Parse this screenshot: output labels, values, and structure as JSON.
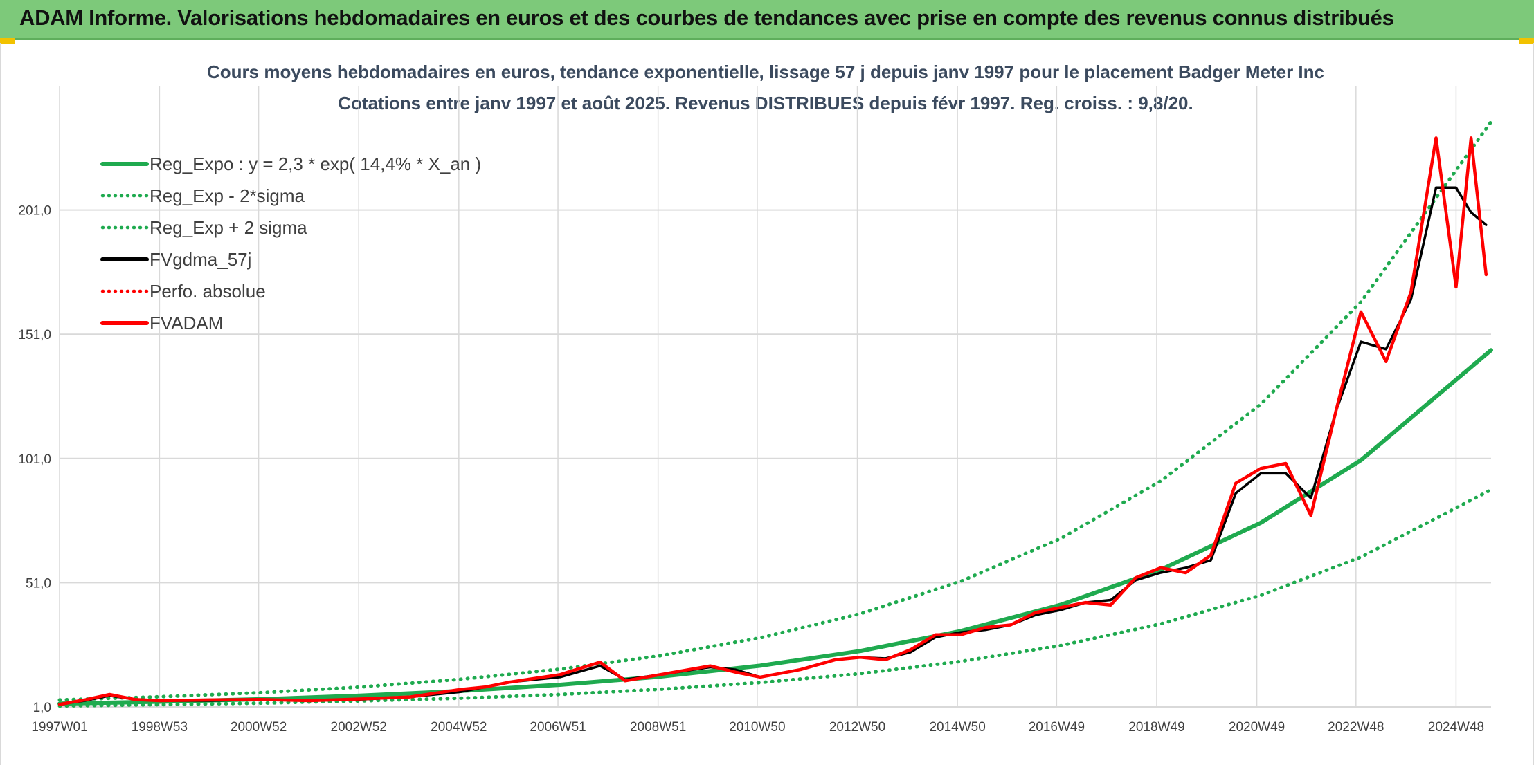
{
  "header": {
    "title": "ADAM Informe. Valorisations hebdomadaires en euros et des courbes de tendances avec prise en compte des revenus connus distribués"
  },
  "colors": {
    "banner": "#7dc97a",
    "green": "#1faa4f",
    "dotted_green": "#1faa4f",
    "black": "#000000",
    "red": "#ff0000",
    "grid": "#d9d9d9"
  },
  "chart_data": {
    "type": "line",
    "title": "Cours moyens hebdomadaires en euros, tendance exponentielle, lissage 57 j depuis janv 1997 pour le placement Badger Meter Inc",
    "subtitle": "Cotations entre janv 1997 et août 2025. Revenus DISTRIBUES depuis févr 1997. Reg. croiss. : 9,8/20.",
    "xlabel": "",
    "ylabel": "",
    "x_range": [
      "1997W01",
      "2025W33"
    ],
    "x_ticks": [
      "1997W01",
      "1998W53",
      "2000W52",
      "2002W52",
      "2004W52",
      "2006W51",
      "2008W51",
      "2010W50",
      "2012W50",
      "2014W50",
      "2016W49",
      "2018W49",
      "2020W49",
      "2022W48",
      "2024W48"
    ],
    "y_ticks": [
      "1,0",
      "51,0",
      "101,0",
      "151,0",
      "201,0"
    ],
    "ylim": [
      1,
      251
    ],
    "grid": true,
    "legend_position": "top-left",
    "legend": [
      {
        "label": "Reg_Expo : y = 2,3 * exp( 14,4% *  X_an )",
        "color": "#1faa4f",
        "style": "solid"
      },
      {
        "label": "Reg_Exp - 2*sigma",
        "color": "#1faa4f",
        "style": "dotted"
      },
      {
        "label": "Reg_Exp + 2 sigma",
        "color": "#1faa4f",
        "style": "dotted"
      },
      {
        "label": "FVgdma_57j",
        "color": "#000000",
        "style": "solid"
      },
      {
        "label": "Perfo. absolue",
        "color": "#ff0000",
        "style": "dotted"
      },
      {
        "label": "FVADAM",
        "color": "#ff0000",
        "style": "solid"
      }
    ],
    "regression": {
      "a": 2.3,
      "rate": 0.144
    },
    "series": [
      {
        "name": "Reg_Expo : y = 2,3 * exp( 14,4% *  X_an )",
        "x": [
          1997.0,
          1999.0,
          2001.0,
          2003.0,
          2005.0,
          2007.0,
          2009.0,
          2011.0,
          2013.0,
          2015.0,
          2017.0,
          2019.0,
          2021.0,
          2023.0,
          2025.6
        ],
        "y": [
          2.3,
          3.1,
          4.1,
          5.5,
          7.4,
          9.9,
          13.2,
          17.6,
          23.5,
          31.5,
          42.1,
          56.2,
          75.1,
          100.3,
          144.6
        ]
      },
      {
        "name": "Reg_Exp - 2*sigma",
        "x": [
          1997.0,
          1999.0,
          2001.0,
          2003.0,
          2005.0,
          2007.0,
          2009.0,
          2011.0,
          2013.0,
          2015.0,
          2017.0,
          2019.0,
          2021.0,
          2023.0,
          2025.6
        ],
        "y": [
          1.4,
          1.9,
          2.5,
          3.4,
          4.5,
          6.0,
          8.1,
          10.8,
          14.4,
          19.3,
          25.7,
          34.4,
          45.9,
          61.3,
          88.4
        ]
      },
      {
        "name": "Reg_Exp + 2 sigma",
        "x": [
          1997.0,
          1999.0,
          2001.0,
          2003.0,
          2005.0,
          2007.0,
          2009.0,
          2011.0,
          2013.0,
          2015.0,
          2017.0,
          2019.0,
          2021.0,
          2023.0,
          2025.6
        ],
        "y": [
          3.8,
          5.1,
          6.7,
          9.0,
          12.1,
          16.2,
          21.6,
          28.8,
          38.5,
          51.5,
          68.8,
          91.9,
          122.8,
          164.0,
          236.5
        ]
      },
      {
        "name": "FVgdma_57j",
        "x": [
          1997.0,
          1997.5,
          1998.0,
          1998.5,
          1999.0,
          2000.0,
          2001.0,
          2002.0,
          2003.0,
          2004.0,
          2005.0,
          2005.5,
          2006.0,
          2007.0,
          2007.8,
          2008.3,
          2009.0,
          2010.0,
          2010.5,
          2011.0,
          2011.8,
          2012.5,
          2013.0,
          2013.5,
          2014.0,
          2014.5,
          2015.0,
          2015.5,
          2016.0,
          2016.5,
          2017.0,
          2017.5,
          2018.0,
          2018.5,
          2019.0,
          2019.5,
          2020.0,
          2020.5,
          2021.0,
          2021.5,
          2022.0,
          2022.5,
          2023.0,
          2023.5,
          2024.0,
          2024.5,
          2024.9,
          2025.2,
          2025.5
        ],
        "y": [
          2.0,
          3.5,
          5.5,
          4.0,
          3.5,
          3.5,
          4.0,
          3.5,
          4.0,
          5.0,
          7.0,
          9.0,
          11.0,
          13.0,
          17.5,
          12.0,
          14.0,
          17.0,
          16.0,
          13.0,
          16.0,
          20.0,
          21.0,
          20.5,
          23.0,
          29.0,
          31.0,
          32.0,
          34.0,
          38.0,
          40.0,
          43.0,
          44.0,
          52.0,
          55.0,
          57.0,
          60.0,
          87.0,
          95.0,
          95.0,
          85.0,
          120.0,
          148.0,
          145.0,
          165.0,
          210.0,
          210.0,
          200.0,
          195.0
        ]
      },
      {
        "name": "FVADAM",
        "x": [
          1997.0,
          1997.5,
          1998.0,
          1998.5,
          1999.0,
          2000.0,
          2001.0,
          2002.0,
          2003.0,
          2004.0,
          2005.0,
          2005.5,
          2006.0,
          2007.0,
          2007.8,
          2008.3,
          2009.0,
          2010.0,
          2010.5,
          2011.0,
          2011.8,
          2012.5,
          2013.0,
          2013.5,
          2014.0,
          2014.5,
          2015.0,
          2015.5,
          2016.0,
          2016.5,
          2017.0,
          2017.5,
          2018.0,
          2018.5,
          2019.0,
          2019.5,
          2020.0,
          2020.5,
          2021.0,
          2021.5,
          2022.0,
          2022.5,
          2023.0,
          2023.5,
          2024.0,
          2024.5,
          2024.9,
          2025.2,
          2025.5
        ],
        "y": [
          2.0,
          3.8,
          6.0,
          4.0,
          3.5,
          3.8,
          4.0,
          3.5,
          4.2,
          5.0,
          8.0,
          9.0,
          11.0,
          14.0,
          19.0,
          11.5,
          14.0,
          17.5,
          15.0,
          13.0,
          16.0,
          20.0,
          21.0,
          20.0,
          24.0,
          30.0,
          30.0,
          33.0,
          34.0,
          39.0,
          41.0,
          43.0,
          42.0,
          53.0,
          57.0,
          55.0,
          62.0,
          91.0,
          97.0,
          99.0,
          78.0,
          120.0,
          160.0,
          140.0,
          168.0,
          230.0,
          170.0,
          230.0,
          175.0
        ]
      }
    ]
  }
}
